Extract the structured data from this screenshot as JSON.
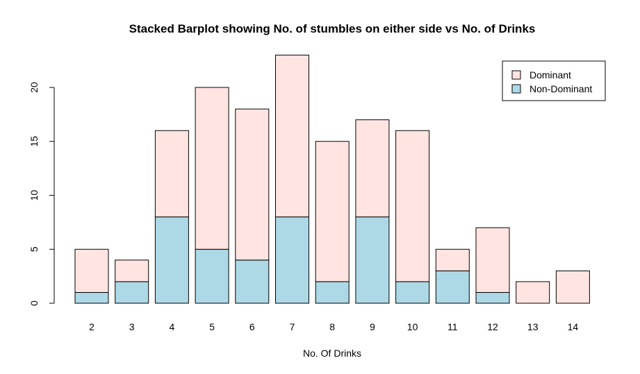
{
  "chart_data": {
    "type": "bar",
    "stacked": true,
    "title": "Stacked Barplot showing No. of stumbles on either side vs No. of Drinks",
    "xlabel": "No. Of Drinks",
    "ylabel": "",
    "categories": [
      "2",
      "3",
      "4",
      "5",
      "6",
      "7",
      "8",
      "9",
      "10",
      "11",
      "12",
      "13",
      "14"
    ],
    "series": [
      {
        "name": "Non-Dominant",
        "color": "#add8e6",
        "values": [
          1,
          2,
          8,
          5,
          4,
          8,
          2,
          8,
          2,
          3,
          1,
          0,
          0
        ]
      },
      {
        "name": "Dominant",
        "color": "#ffe4e1",
        "values": [
          4,
          2,
          8,
          15,
          14,
          15,
          13,
          9,
          14,
          2,
          6,
          2,
          3
        ]
      }
    ],
    "yticks": [
      0,
      5,
      10,
      15,
      20
    ],
    "ylim": [
      0,
      23
    ],
    "legend": {
      "position": "top-right",
      "entries": [
        "Dominant",
        "Non-Dominant"
      ]
    },
    "grid": false
  }
}
